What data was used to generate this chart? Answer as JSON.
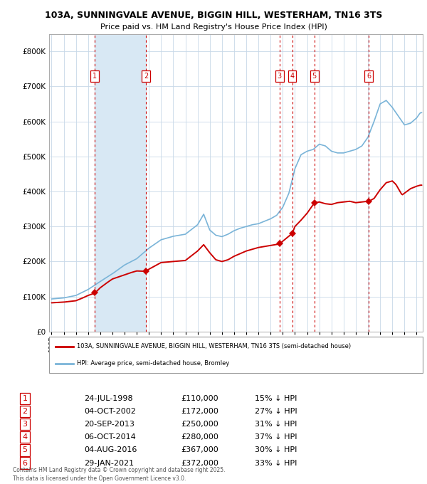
{
  "title_line1": "103A, SUNNINGVALE AVENUE, BIGGIN HILL, WESTERHAM, TN16 3TS",
  "title_line2": "Price paid vs. HM Land Registry's House Price Index (HPI)",
  "legend_house": "103A, SUNNINGVALE AVENUE, BIGGIN HILL, WESTERHAM, TN16 3TS (semi-detached house)",
  "legend_hpi": "HPI: Average price, semi-detached house, Bromley",
  "footer": "Contains HM Land Registry data © Crown copyright and database right 2025.\nThis data is licensed under the Open Government Licence v3.0.",
  "transactions": [
    {
      "num": 1,
      "date": "24-JUL-1998",
      "year": 1998.57,
      "price": 110000,
      "pct": "15% ↓ HPI"
    },
    {
      "num": 2,
      "date": "04-OCT-2002",
      "year": 2002.76,
      "price": 172000,
      "pct": "27% ↓ HPI"
    },
    {
      "num": 3,
      "date": "20-SEP-2013",
      "year": 2013.72,
      "price": 250000,
      "pct": "31% ↓ HPI"
    },
    {
      "num": 4,
      "date": "06-OCT-2014",
      "year": 2014.77,
      "price": 280000,
      "pct": "37% ↓ HPI"
    },
    {
      "num": 5,
      "date": "04-AUG-2016",
      "year": 2016.59,
      "price": 367000,
      "pct": "30% ↓ HPI"
    },
    {
      "num": 6,
      "date": "29-JAN-2021",
      "year": 2021.08,
      "price": 372000,
      "pct": "33% ↓ HPI"
    }
  ],
  "house_color": "#cc0000",
  "hpi_color": "#7ab4d8",
  "vline_color": "#cc0000",
  "shade_color": "#d8e8f4",
  "ylim": [
    0,
    850000
  ],
  "xlim_start": 1994.8,
  "xlim_end": 2025.5,
  "background_color": "#ffffff",
  "hpi_anchors_x": [
    1995.0,
    1996.0,
    1997.0,
    1998.0,
    1999.0,
    2000.0,
    2001.0,
    2002.0,
    2003.0,
    2004.0,
    2005.0,
    2006.0,
    2007.0,
    2007.5,
    2008.0,
    2008.5,
    2009.0,
    2009.5,
    2010.0,
    2010.5,
    2011.0,
    2011.5,
    2012.0,
    2012.5,
    2013.0,
    2013.5,
    2014.0,
    2014.5,
    2015.0,
    2015.5,
    2016.0,
    2016.5,
    2017.0,
    2017.5,
    2018.0,
    2018.5,
    2019.0,
    2019.5,
    2020.0,
    2020.5,
    2021.0,
    2021.5,
    2022.0,
    2022.5,
    2023.0,
    2023.5,
    2024.0,
    2024.5,
    2025.0,
    2025.3
  ],
  "hpi_anchors_y": [
    93000,
    96000,
    103000,
    120000,
    143000,
    165000,
    190000,
    208000,
    238000,
    262000,
    272000,
    278000,
    305000,
    335000,
    290000,
    275000,
    271000,
    278000,
    288000,
    295000,
    300000,
    305000,
    308000,
    315000,
    322000,
    332000,
    355000,
    395000,
    465000,
    505000,
    515000,
    520000,
    535000,
    530000,
    515000,
    510000,
    510000,
    515000,
    520000,
    530000,
    555000,
    600000,
    650000,
    660000,
    640000,
    615000,
    590000,
    595000,
    610000,
    625000
  ],
  "house_anchors_x": [
    1995.0,
    1996.0,
    1997.0,
    1997.5,
    1998.0,
    1998.57,
    1999.0,
    1999.5,
    2000.0,
    2001.0,
    2001.5,
    2002.0,
    2002.76,
    2003.0,
    2004.0,
    2005.0,
    2006.0,
    2007.0,
    2007.5,
    2008.0,
    2008.5,
    2009.0,
    2009.5,
    2010.0,
    2011.0,
    2012.0,
    2013.0,
    2013.72,
    2014.0,
    2014.77,
    2015.0,
    2015.5,
    2016.0,
    2016.59,
    2017.0,
    2017.5,
    2018.0,
    2018.5,
    2019.0,
    2019.5,
    2020.0,
    2020.5,
    2021.0,
    2021.08,
    2021.5,
    2022.0,
    2022.5,
    2023.0,
    2023.3,
    2023.8,
    2024.0,
    2024.5,
    2025.0,
    2025.3
  ],
  "house_anchors_y": [
    82000,
    84000,
    88000,
    95000,
    103000,
    110000,
    125000,
    138000,
    150000,
    162000,
    168000,
    173000,
    172000,
    178000,
    197000,
    200000,
    203000,
    230000,
    248000,
    225000,
    205000,
    200000,
    205000,
    215000,
    230000,
    240000,
    246000,
    250000,
    258000,
    280000,
    300000,
    318000,
    338000,
    367000,
    370000,
    365000,
    363000,
    368000,
    370000,
    372000,
    368000,
    370000,
    372000,
    372000,
    380000,
    405000,
    425000,
    430000,
    420000,
    390000,
    395000,
    408000,
    415000,
    418000
  ]
}
